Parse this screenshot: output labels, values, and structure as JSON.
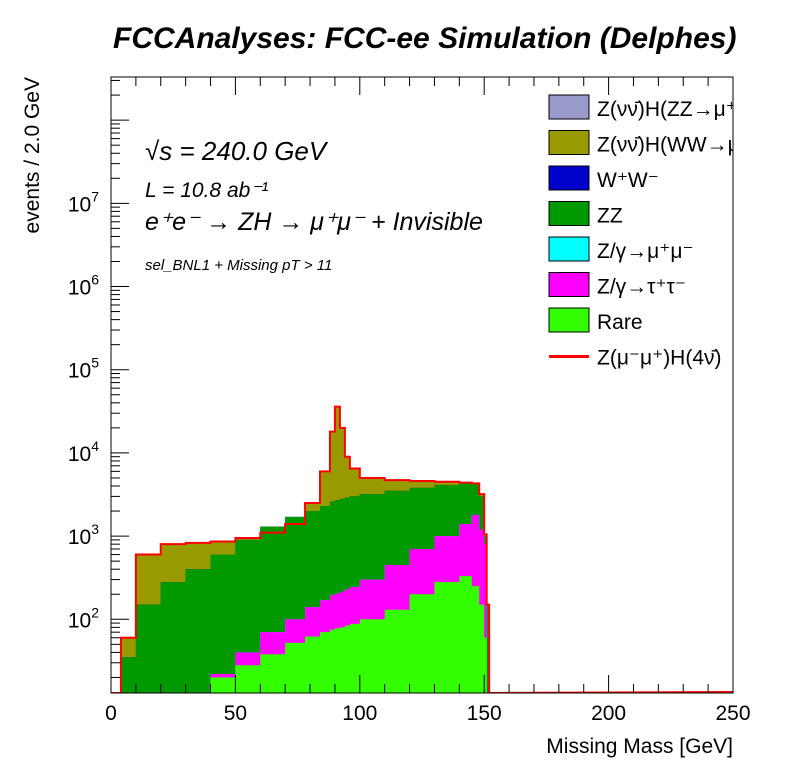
{
  "chart_data": {
    "type": "area",
    "title": "FCCAnalyses: FCC-ee Simulation (Delphes)",
    "xlabel": "Missing Mass [GeV]",
    "ylabel": "events / 2.0 GeV",
    "xlim": [
      0,
      250
    ],
    "ylim": [
      13,
      330000000
    ],
    "yscale": "log",
    "x_ticks": [
      "0",
      "50",
      "100",
      "150",
      "200",
      "250"
    ],
    "y_ticks": [
      {
        "base": "10",
        "exp": "2",
        "value": 100
      },
      {
        "base": "10",
        "exp": "3",
        "value": 1000
      },
      {
        "base": "10",
        "exp": "4",
        "value": 10000
      },
      {
        "base": "10",
        "exp": "5",
        "value": 100000
      },
      {
        "base": "10",
        "exp": "6",
        "value": 1000000
      },
      {
        "base": "10",
        "exp": "7",
        "value": 10000000
      }
    ],
    "grid": false,
    "legend_position": "top-right",
    "annotations": {
      "sqrt_s": "√s = 240.0 GeV",
      "lumi": "L = 10.8 ab⁻¹",
      "process": "e⁺e⁻ → ZH → μ⁺μ⁻ + Invisible",
      "selection": "sel_BNL1 + Missing pT > 11"
    },
    "x_knots": [
      0,
      4,
      10,
      20,
      30,
      40,
      50,
      60,
      70,
      78,
      84,
      88,
      90,
      92,
      94,
      96,
      100,
      110,
      120,
      130,
      140,
      145,
      148,
      150,
      151,
      152
    ],
    "series": [
      {
        "name": "Rare",
        "color": "#33ff00",
        "values": [
          0,
          0,
          0,
          0,
          13,
          20,
          28,
          38,
          52,
          62,
          70,
          75,
          78,
          80,
          84,
          88,
          100,
          130,
          200,
          280,
          330,
          250,
          150,
          60,
          13,
          0
        ]
      },
      {
        "name": "Z/γ→τ⁺τ⁻",
        "color": "#ff00ff",
        "values": [
          0,
          0,
          0,
          0,
          13,
          22,
          40,
          70,
          100,
          140,
          170,
          195,
          205,
          215,
          230,
          245,
          300,
          450,
          700,
          1000,
          1400,
          1800,
          1200,
          800,
          13,
          0
        ]
      },
      {
        "name": "Z/γ→μ⁺μ⁻",
        "color": "#00ffff",
        "values": [
          0,
          0,
          0,
          0,
          13,
          22,
          40,
          70,
          100,
          140,
          170,
          195,
          205,
          215,
          230,
          245,
          300,
          450,
          700,
          1000,
          1400,
          1800,
          1200,
          800,
          13,
          0
        ]
      },
      {
        "name": "ZZ",
        "color": "#009900",
        "values": [
          0,
          35,
          150,
          280,
          400,
          600,
          900,
          1300,
          1700,
          2000,
          2300,
          2600,
          2700,
          2800,
          2900,
          3000,
          3200,
          3500,
          3800,
          4100,
          4300,
          4200,
          3000,
          1000,
          150,
          0
        ]
      },
      {
        "name": "W⁺W⁻",
        "color": "#0000cc",
        "values": [
          0,
          35,
          150,
          280,
          400,
          600,
          900,
          1300,
          1700,
          2000,
          2300,
          2600,
          2700,
          2800,
          2900,
          3000,
          3200,
          3500,
          3800,
          4100,
          4300,
          4200,
          3000,
          1000,
          150,
          0
        ]
      },
      {
        "name": "Z(νν̄)H(WW→μ⁺νμ⁻ν̄)",
        "color": "#999900",
        "values": [
          0,
          60,
          600,
          800,
          830,
          860,
          950,
          1100,
          1400,
          2500,
          6000,
          18000,
          36000,
          20000,
          9000,
          6500,
          5000,
          4700,
          4600,
          4500,
          4400,
          4300,
          3200,
          1050,
          150,
          0
        ]
      },
      {
        "name": "Z(νν̄)H(ZZ→μ⁺μ⁻νν̄)",
        "color": "#9999cc",
        "values": [
          0,
          60,
          600,
          800,
          830,
          860,
          950,
          1100,
          1400,
          2500,
          6000,
          18000,
          36000,
          20000,
          9000,
          6500,
          5000,
          4700,
          4600,
          4500,
          4400,
          4300,
          3200,
          1050,
          150,
          0
        ]
      }
    ],
    "overlay": {
      "name": "Z(μ⁻μ⁺)H(4ν̄)",
      "color": "#ff0000",
      "style": "line"
    }
  },
  "legend": [
    {
      "label": "Z(νν̄)H(ZZ→μ⁺μ⁻νν̄)",
      "color": "#9999cc",
      "kind": "box"
    },
    {
      "label": "Z(νν̄)H(WW→μ⁺νμ⁻ν̄)",
      "color": "#999900",
      "kind": "box"
    },
    {
      "label": "W⁺W⁻",
      "color": "#0000cc",
      "kind": "box"
    },
    {
      "label": "ZZ",
      "color": "#009900",
      "kind": "box"
    },
    {
      "label": "Z/γ→μ⁺μ⁻",
      "color": "#00ffff",
      "kind": "box"
    },
    {
      "label": "Z/γ→τ⁺τ⁻",
      "color": "#ff00ff",
      "kind": "box"
    },
    {
      "label": "Rare",
      "color": "#33ff00",
      "kind": "box"
    },
    {
      "label": "Z(μ⁻μ⁺)H(4ν̄)",
      "color": "#ff0000",
      "kind": "line"
    }
  ]
}
